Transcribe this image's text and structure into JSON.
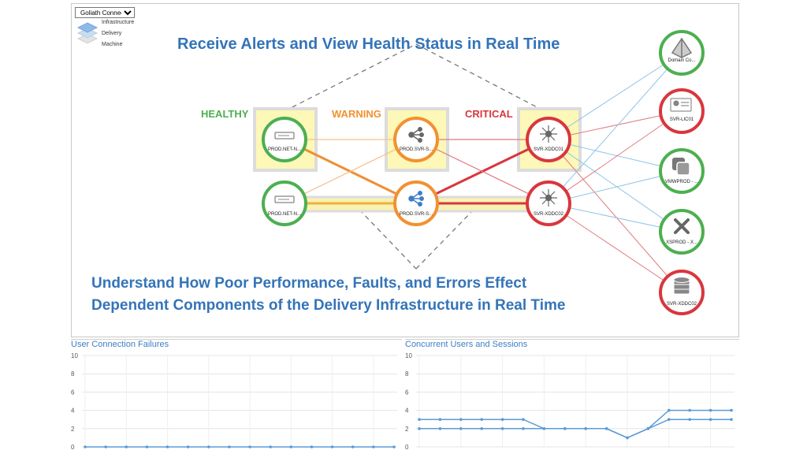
{
  "header": {
    "view_select": "Goliath Connect",
    "layers": [
      "Infrastructure",
      "Delivery",
      "Machine"
    ]
  },
  "headline_top": "Receive Alerts and View Health Status in Real Time",
  "headline_bottom_line1": "Understand How Poor Performance, Faults, and Errors Effect",
  "headline_bottom_line2": "Dependent Components of the Delivery Infrastructure in Real Time",
  "status_labels": {
    "healthy": "HEALTHY",
    "warning": "WARNING",
    "critical": "CRITICAL"
  },
  "colors": {
    "healthy": "#4caf50",
    "warning": "#f29130",
    "critical": "#d9363e",
    "headline": "#3474b8",
    "chart_line": "#5b9bd5",
    "highlight": "#fdf7b8"
  },
  "nodes": [
    {
      "id": "n1",
      "label": "PROD.NET-N...",
      "status": "healthy",
      "icon": "network-switch-icon"
    },
    {
      "id": "n2",
      "label": "PROD.SVR-S...",
      "status": "warning",
      "icon": "share-hub-icon"
    },
    {
      "id": "n3",
      "label": "SVR-XDDC01",
      "status": "critical",
      "icon": "hub-star-icon"
    },
    {
      "id": "n4",
      "label": "PROD.NET-N...",
      "status": "healthy",
      "icon": "network-switch-icon"
    },
    {
      "id": "n5",
      "label": "PROD.SVR-S...",
      "status": "warning",
      "icon": "share-hub-icon"
    },
    {
      "id": "n6",
      "label": "SVR-XDDC02",
      "status": "critical",
      "icon": "hub-star-icon"
    }
  ],
  "side_nodes": [
    {
      "id": "s1",
      "label": "Domain Co...",
      "status": "healthy",
      "icon": "domain-pyramid-icon"
    },
    {
      "id": "s2",
      "label": "SVR-LIC01",
      "status": "critical",
      "icon": "license-card-icon"
    },
    {
      "id": "s3",
      "label": "VMWPROD - ...",
      "status": "healthy",
      "icon": "vmware-icon"
    },
    {
      "id": "s4",
      "label": "XSPROD - X...",
      "status": "healthy",
      "icon": "xenserver-icon"
    },
    {
      "id": "s5",
      "label": "SVR-XDDC02",
      "status": "critical",
      "icon": "database-icon"
    }
  ],
  "charts": [
    {
      "title": "User Connection Failures",
      "chart_data": {
        "type": "line",
        "ylim": [
          0,
          10
        ],
        "yticks": [
          "0",
          "2",
          "4",
          "6",
          "8",
          "10"
        ],
        "grid": true,
        "series": [
          {
            "values": [
              0,
              0,
              0,
              0,
              0,
              0,
              0,
              0,
              0,
              0,
              0,
              0,
              0,
              0,
              0,
              0
            ]
          }
        ]
      }
    },
    {
      "title": "Concurrent Users and Sessions",
      "chart_data": {
        "type": "line",
        "ylim": [
          0,
          10
        ],
        "yticks": [
          "0",
          "2",
          "4",
          "6",
          "8",
          "10"
        ],
        "grid": true,
        "series": [
          {
            "values": [
              3,
              3,
              3,
              3,
              3,
              3,
              2,
              2,
              2,
              2,
              1,
              2,
              4,
              4,
              4,
              4
            ]
          },
          {
            "values": [
              2,
              2,
              2,
              2,
              2,
              2,
              2,
              2,
              2,
              2,
              1,
              2,
              3,
              3,
              3,
              3
            ]
          }
        ]
      }
    }
  ]
}
